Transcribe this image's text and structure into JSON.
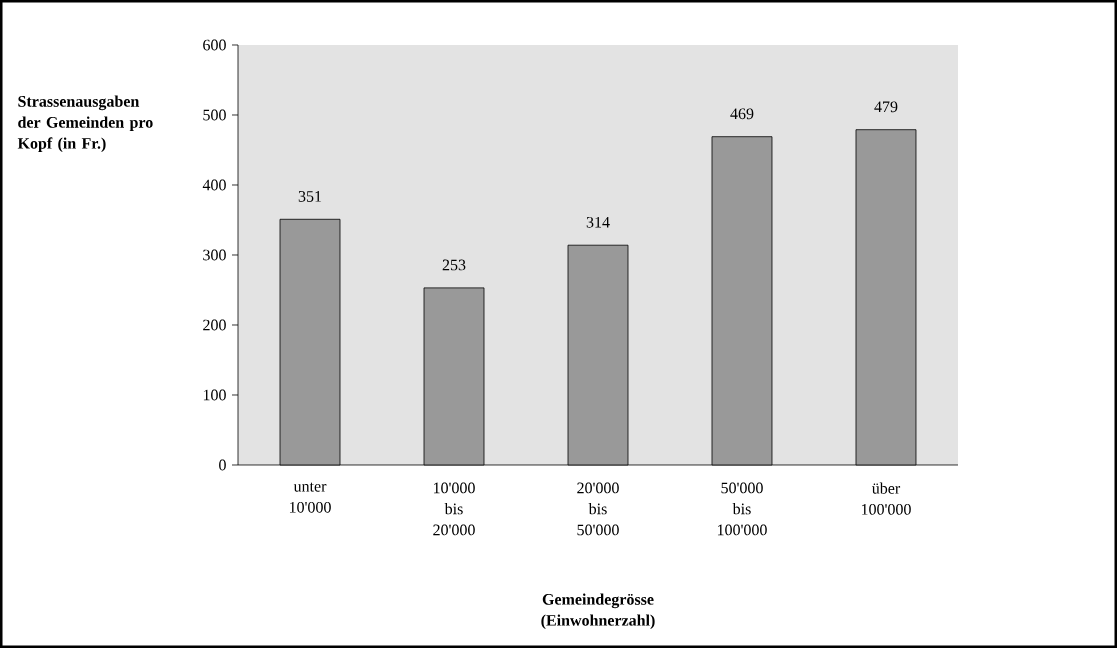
{
  "chart_data": {
    "type": "bar",
    "xlabel": "Gemeindegrösse (Einwohnerzahl)",
    "ylabel": "Strassenausgaben der Gemeinden pro Kopf (in Fr.)",
    "categories": [
      "unter 10'000",
      "10'000 bis 20'000",
      "20'000 bis 50'000",
      "50'000 bis 100'000",
      "über 100'000"
    ],
    "values": [
      351,
      253,
      314,
      469,
      479
    ],
    "color": "#999999",
    "ylim": [
      0,
      600
    ],
    "yticks": [
      0,
      100,
      200,
      300,
      400,
      500,
      600
    ],
    "data_labels": true
  }
}
